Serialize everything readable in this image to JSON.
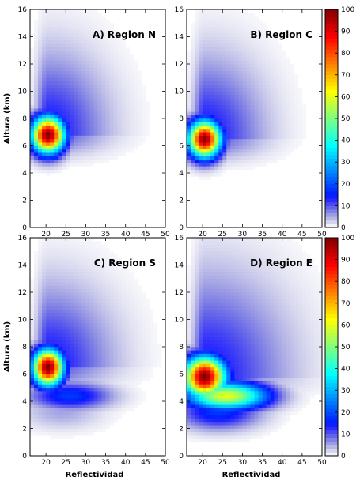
{
  "chart_data": [
    {
      "type": "heatmap",
      "title": "A) Region N",
      "xlabel": "",
      "ylabel": "Altura (km)",
      "xlim": [
        16,
        50
      ],
      "ylim": [
        0,
        16
      ],
      "xticks": [
        "20",
        "25",
        "30",
        "35",
        "40",
        "45",
        "50"
      ],
      "yticks": [
        "0",
        "2",
        "4",
        "6",
        "8",
        "10",
        "12",
        "14",
        "16"
      ],
      "peak": {
        "x": 20.5,
        "y": 6.8,
        "value": 100
      },
      "shape": {
        "spread_x": 2.8,
        "spread_y": 0.9,
        "tail_x": 10,
        "tail_y": 4,
        "shelf": 0
      }
    },
    {
      "type": "heatmap",
      "title": "B) Region C",
      "xlabel": "",
      "ylabel": "",
      "xlim": [
        16,
        50
      ],
      "ylim": [
        0,
        16
      ],
      "xticks": [
        "20",
        "25",
        "30",
        "35",
        "40",
        "45",
        "50"
      ],
      "yticks": [
        "0",
        "2",
        "4",
        "6",
        "8",
        "10",
        "12",
        "14",
        "16"
      ],
      "peak": {
        "x": 20.5,
        "y": 6.5,
        "value": 100
      },
      "shape": {
        "spread_x": 2.8,
        "spread_y": 0.9,
        "tail_x": 10,
        "tail_y": 4,
        "shelf": 0
      }
    },
    {
      "type": "heatmap",
      "title": "C) Region S",
      "xlabel": "Reflectividad",
      "ylabel": "Altura (km)",
      "xlim": [
        16,
        50
      ],
      "ylim": [
        0,
        16
      ],
      "xticks": [
        "20",
        "25",
        "30",
        "35",
        "40",
        "45",
        "50"
      ],
      "yticks": [
        "0",
        "2",
        "4",
        "6",
        "8",
        "10",
        "12",
        "14",
        "16"
      ],
      "peak": {
        "x": 20.5,
        "y": 6.5,
        "value": 100
      },
      "shape": {
        "spread_x": 2.6,
        "spread_y": 0.9,
        "tail_x": 11,
        "tail_y": 4,
        "shelf": 0.3
      }
    },
    {
      "type": "heatmap",
      "title": "D) Region E",
      "xlabel": "Reflectividad",
      "ylabel": "",
      "xlim": [
        16,
        50
      ],
      "ylim": [
        0,
        16
      ],
      "xticks": [
        "20",
        "25",
        "30",
        "35",
        "40",
        "45",
        "50"
      ],
      "yticks": [
        "0",
        "2",
        "4",
        "6",
        "8",
        "10",
        "12",
        "14",
        "16"
      ],
      "peak": {
        "x": 20.5,
        "y": 5.8,
        "value": 100
      },
      "shape": {
        "spread_x": 3.6,
        "spread_y": 1.0,
        "tail_x": 14,
        "tail_y": 5,
        "shelf": 1
      }
    }
  ],
  "colorbars": [
    {
      "min": 0,
      "max": 100,
      "ticks": [
        "0",
        "10",
        "20",
        "30",
        "40",
        "50",
        "60",
        "70",
        "80",
        "90",
        "100"
      ]
    },
    {
      "min": 0,
      "max": 100,
      "ticks": [
        "0",
        "10",
        "20",
        "30",
        "40",
        "50",
        "60",
        "70",
        "80",
        "90",
        "100"
      ]
    }
  ]
}
